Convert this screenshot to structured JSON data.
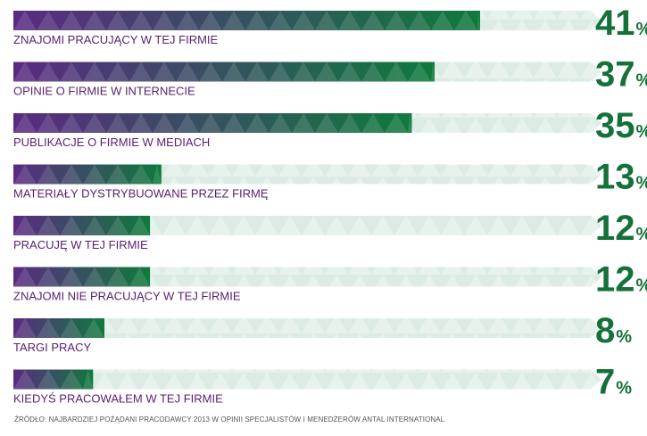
{
  "chart_data": {
    "type": "bar",
    "categories": [
      "ZNAJOMI PRACUJĄCY W TEJ FIRMIE",
      "OPINIE O FIRMIE W INTERNECIE",
      "PUBLIKACJE O FIRMIE W MEDIACH",
      "MATERIAŁY DYSTRYBUOWANE PRZEZ FIRMĘ",
      "PRACUJĘ W TEJ FIRMIE",
      "ZNAJOMI NIE PRACUJĄCY W TEJ FIRMIE",
      "TARGI PRACY",
      "KIEDYŚ PRACOWAŁEM W TEJ FIRMIE"
    ],
    "values": [
      41,
      37,
      35,
      13,
      12,
      12,
      8,
      7
    ],
    "value_labels": [
      "41",
      "37",
      "35",
      "13",
      "12",
      "12",
      "8",
      "7"
    ],
    "unit": "%",
    "xlim": [
      0,
      58
    ],
    "orientation": "horizontal",
    "title": "",
    "xlabel": "",
    "ylabel": ""
  },
  "source_note": "ŹRÓDŁO: NAJBARDZIEJ POŻĄDANI PRACODAWCY 2013 W OPINII SPECJALISTÓW I MENEDŻERÓW  ANTAL INTERNATIONAL",
  "colors": {
    "gradient_start": "#5a2a82",
    "gradient_end": "#0f7a3c",
    "track": "#dcebe3",
    "label": "#5a1f6e",
    "value": "#15713a"
  }
}
